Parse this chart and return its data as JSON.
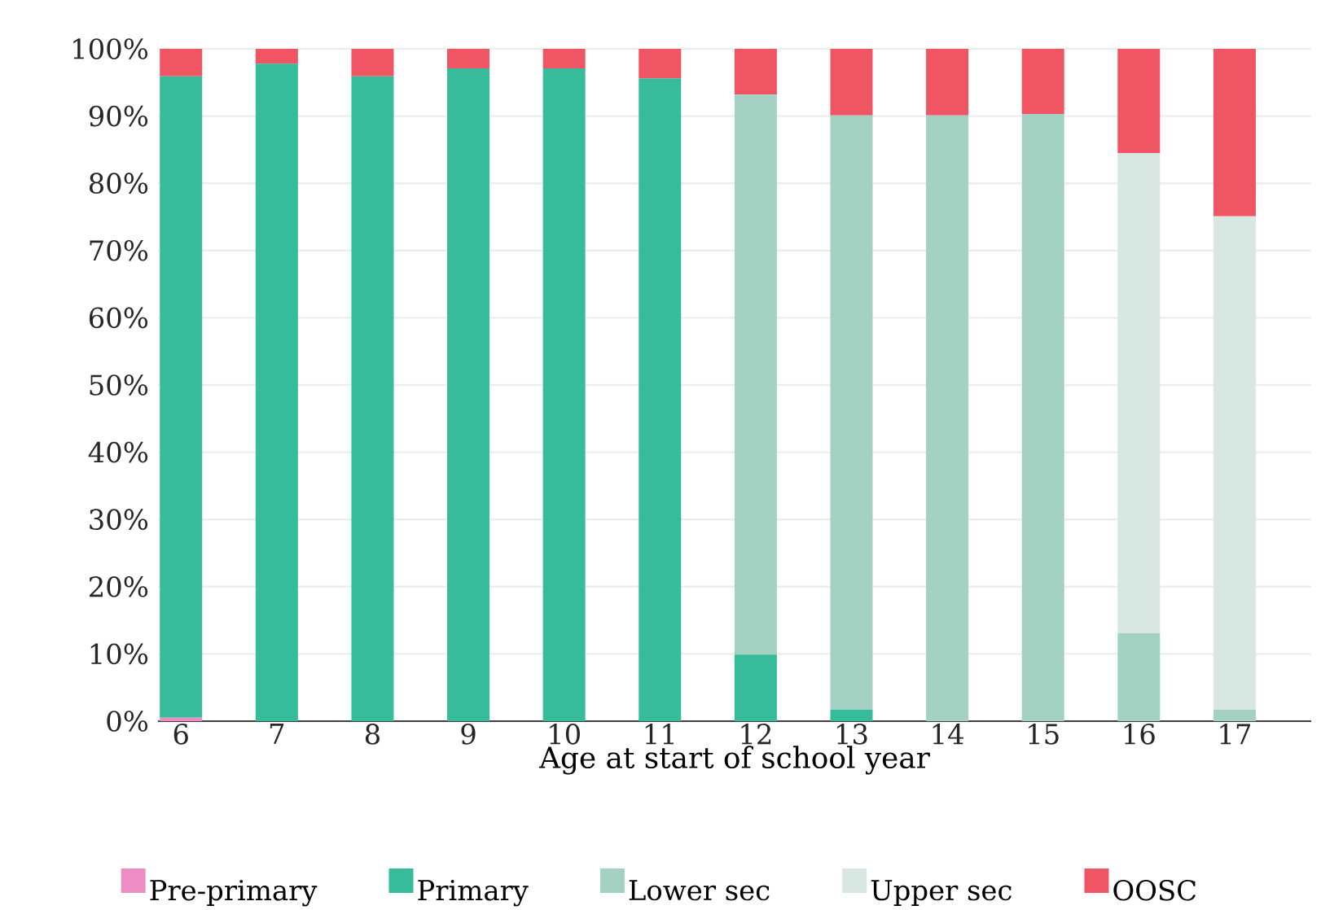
{
  "chart_data": {
    "type": "bar",
    "stacked": true,
    "xlabel": "Age at start of school year",
    "categories": [
      "6",
      "7",
      "8",
      "9",
      "10",
      "11",
      "12",
      "13",
      "14",
      "15",
      "16",
      "17"
    ],
    "series": [
      {
        "name": "Pre-primary",
        "color": "#ee8dc3",
        "values": [
          0.5,
          0,
          0,
          0,
          0,
          0,
          0,
          0,
          0,
          0,
          0,
          0
        ]
      },
      {
        "name": "Primary",
        "color": "#37bc9b",
        "values": [
          95.4,
          97.8,
          95.9,
          97.1,
          97.1,
          95.6,
          9.9,
          1.7,
          0,
          0,
          0,
          0
        ]
      },
      {
        "name": "Lower sec",
        "color": "#a3d1c2",
        "values": [
          0,
          0,
          0,
          0,
          0,
          0,
          83.3,
          88.4,
          90.1,
          90.3,
          13.1,
          1.7
        ]
      },
      {
        "name": "Upper sec",
        "color": "#d8e7e2",
        "values": [
          0,
          0,
          0,
          0,
          0,
          0,
          0,
          0,
          0,
          0,
          71.4,
          73.4
        ]
      },
      {
        "name": "OOSC",
        "color": "#f05563",
        "values": [
          4.1,
          2.2,
          4.1,
          2.9,
          2.9,
          4.4,
          6.8,
          9.9,
          9.9,
          9.7,
          15.5,
          24.9
        ]
      }
    ],
    "ylim": [
      0,
      100
    ],
    "yticks": [
      {
        "value": 0,
        "label": "0%"
      },
      {
        "value": 10,
        "label": "10%"
      },
      {
        "value": 20,
        "label": "20%"
      },
      {
        "value": 30,
        "label": "30%"
      },
      {
        "value": 40,
        "label": "40%"
      },
      {
        "value": 50,
        "label": "50%"
      },
      {
        "value": 60,
        "label": "60%"
      },
      {
        "value": 70,
        "label": "70%"
      },
      {
        "value": 80,
        "label": "80%"
      },
      {
        "value": 90,
        "label": "90%"
      },
      {
        "value": 100,
        "label": "100%"
      }
    ],
    "grid": "y",
    "legend": "bottom"
  }
}
